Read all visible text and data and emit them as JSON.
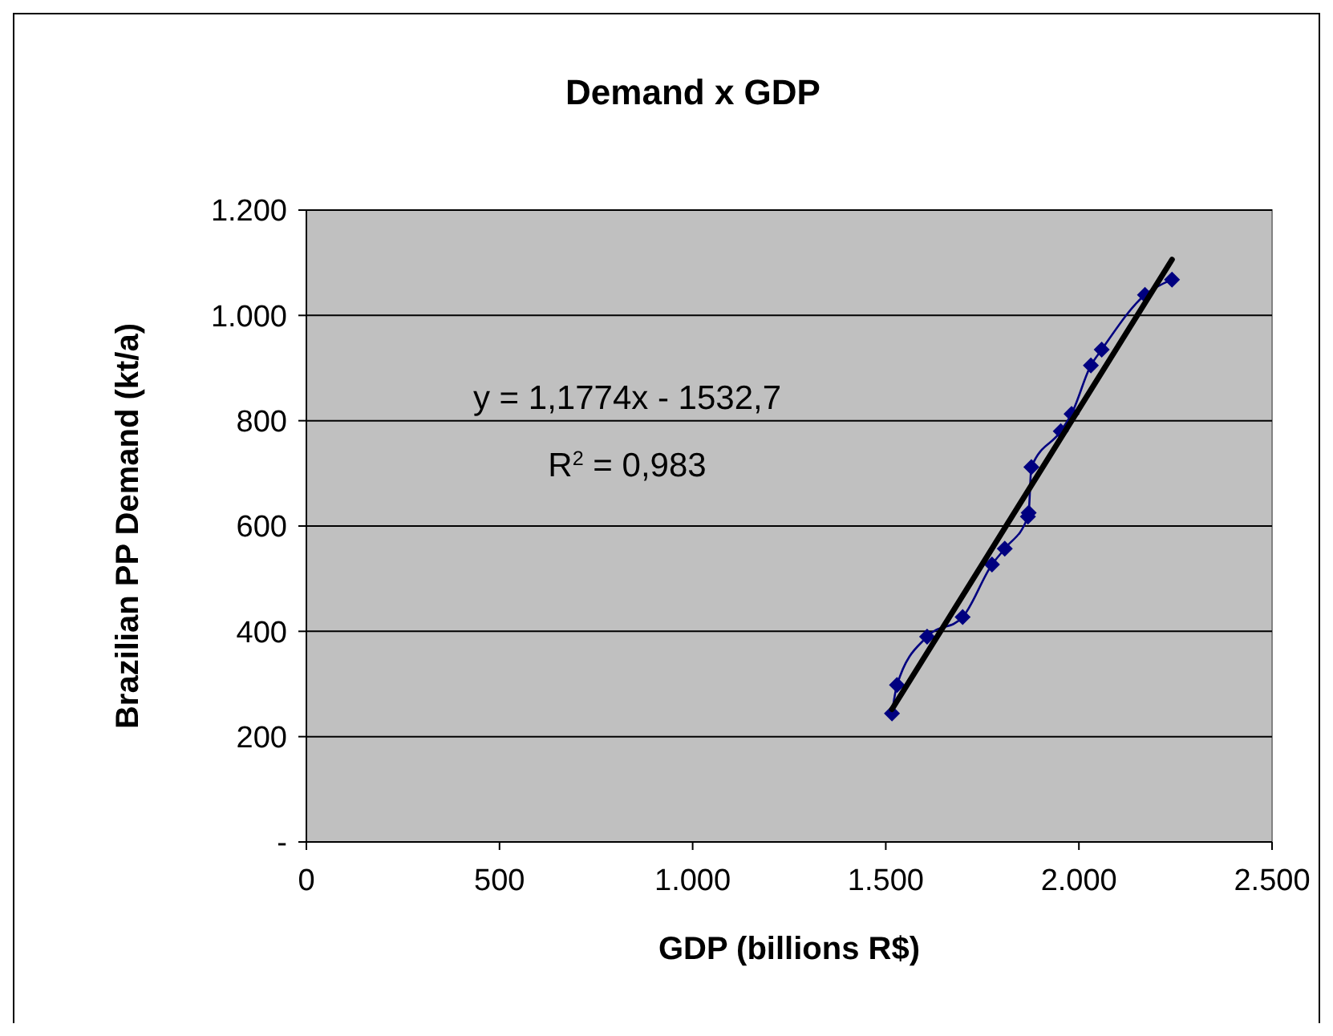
{
  "chart_data": {
    "type": "line",
    "title": "Demand x GDP",
    "xlabel": "GDP (billions R$)",
    "ylabel": "Brazilian PP Demand (kt/a)",
    "annotations": [
      "y = 1,1774x - 1532,7",
      "R$^{2}$ = 0,983"
    ],
    "xlim": [
      0,
      2500
    ],
    "xticks": [
      0,
      500,
      {
        "value": 1000,
        "label": "1.000"
      },
      {
        "value": 1500,
        "label": "1.500"
      },
      {
        "value": 2000,
        "label": "2.000"
      },
      {
        "value": 2500,
        "label": "2.500"
      }
    ],
    "ylim": [
      0,
      1200
    ],
    "yticks": [
      {
        "value": 0,
        "label": "-"
      },
      200,
      400,
      600,
      800,
      {
        "value": 1000,
        "label": "1.000"
      },
      {
        "value": 1200,
        "label": "1.200"
      }
    ],
    "grid": "y",
    "series": [
      {
        "color": "#000080",
        "marker": "diamond",
        "x": [
          1516,
          1529,
          1607,
          1699,
          1775,
          1808,
          1868,
          1870,
          1877,
          1953,
          1981,
          2031,
          2059,
          2171,
          2241
        ],
        "values": [
          244,
          298,
          390,
          427,
          527,
          557,
          618,
          625,
          712,
          780,
          813,
          905,
          935,
          1039,
          1068
        ]
      },
      {
        "color": "#000000",
        "marker": "none",
        "x": [
          1516,
          2241
        ],
        "values": [
          252,
          1106
        ]
      }
    ]
  }
}
